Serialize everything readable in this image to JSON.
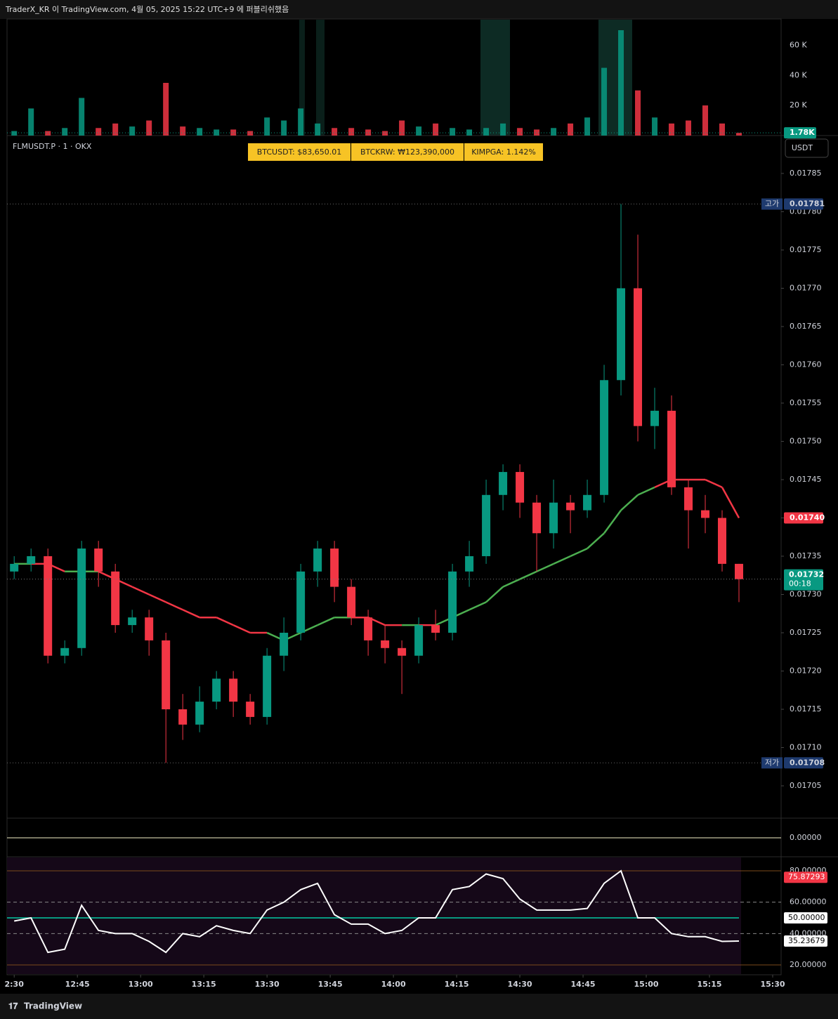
{
  "header": {
    "text": "TraderX_KR 이 TradingView.com, 4월 05, 2025 15:22 UTC+9 에 퍼블리쉬했음"
  },
  "chart_data": {
    "type": "candlestick",
    "symbol": "FLMUSDT.P · 1 · OKX",
    "badges": [
      "BTCUSDT: $83,650.01",
      "BTCKRW: ₩123,390,000",
      "KIMPGA: 1.142%"
    ],
    "currency_button": "USDT",
    "up_color": "#089981",
    "down_color": "#f23645",
    "x": [
      750,
      754,
      758,
      762,
      766,
      770,
      774,
      778,
      782,
      786,
      790,
      794,
      798,
      802,
      806,
      810,
      814,
      818,
      822,
      826,
      830,
      834,
      838,
      842,
      846,
      850,
      854,
      858,
      862,
      866,
      870,
      874,
      878,
      882,
      886,
      890,
      894,
      898,
      902,
      906,
      910,
      914,
      918,
      922
    ],
    "open": [
      0.01733,
      0.01734,
      0.01735,
      0.01722,
      0.01723,
      0.01736,
      0.01733,
      0.01726,
      0.01727,
      0.01724,
      0.01715,
      0.01713,
      0.01716,
      0.01719,
      0.01716,
      0.01714,
      0.01722,
      0.01725,
      0.01733,
      0.01736,
      0.01731,
      0.01727,
      0.01724,
      0.01723,
      0.01722,
      0.01726,
      0.01725,
      0.01733,
      0.01735,
      0.01743,
      0.01746,
      0.01742,
      0.01738,
      0.01742,
      0.01741,
      0.01743,
      0.01758,
      0.0177,
      0.01752,
      0.01754,
      0.01744,
      0.01741,
      0.0174,
      0.01734
    ],
    "high": [
      0.01735,
      0.01736,
      0.01736,
      0.01724,
      0.01737,
      0.01737,
      0.01734,
      0.01728,
      0.01728,
      0.01725,
      0.01717,
      0.01718,
      0.0172,
      0.0172,
      0.01717,
      0.01723,
      0.01727,
      0.01734,
      0.01737,
      0.01737,
      0.01732,
      0.01728,
      0.01726,
      0.01724,
      0.01727,
      0.01728,
      0.01734,
      0.01737,
      0.01745,
      0.01747,
      0.01747,
      0.01743,
      0.01745,
      0.01743,
      0.01745,
      0.0176,
      0.01781,
      0.01777,
      0.01757,
      0.01756,
      0.01745,
      0.01743,
      0.01741,
      0.01734
    ],
    "low": [
      0.01732,
      0.01733,
      0.01721,
      0.01721,
      0.01722,
      0.01731,
      0.01725,
      0.01725,
      0.01722,
      0.01708,
      0.01711,
      0.01712,
      0.01715,
      0.01714,
      0.01713,
      0.01713,
      0.0172,
      0.01724,
      0.01731,
      0.01729,
      0.01726,
      0.01722,
      0.01721,
      0.01717,
      0.01721,
      0.01724,
      0.01724,
      0.01731,
      0.01734,
      0.01741,
      0.0174,
      0.01733,
      0.01736,
      0.01738,
      0.0174,
      0.01742,
      0.01756,
      0.0175,
      0.01749,
      0.01743,
      0.01736,
      0.01738,
      0.01733,
      0.01729
    ],
    "close": [
      0.01734,
      0.01735,
      0.01722,
      0.01723,
      0.01736,
      0.01733,
      0.01726,
      0.01727,
      0.01724,
      0.01715,
      0.01713,
      0.01716,
      0.01719,
      0.01716,
      0.01714,
      0.01722,
      0.01725,
      0.01733,
      0.01736,
      0.01731,
      0.01727,
      0.01724,
      0.01723,
      0.01722,
      0.01726,
      0.01725,
      0.01733,
      0.01735,
      0.01743,
      0.01746,
      0.01742,
      0.01738,
      0.01742,
      0.01741,
      0.01743,
      0.01758,
      0.0177,
      0.01752,
      0.01754,
      0.01744,
      0.01741,
      0.0174,
      0.01734,
      0.01732
    ],
    "last_label": "0.01732",
    "countdown": "00:18",
    "ma": {
      "color_above": "#f23645",
      "color_below": "#4caf50",
      "values": [
        0.01734,
        0.01734,
        0.01734,
        0.01733,
        0.01733,
        0.01733,
        0.01732,
        0.01731,
        0.0173,
        0.01729,
        0.01728,
        0.01727,
        0.01727,
        0.01726,
        0.01725,
        0.01725,
        0.01724,
        0.01725,
        0.01726,
        0.01727,
        0.01727,
        0.01727,
        0.01726,
        0.01726,
        0.01726,
        0.01726,
        0.01727,
        0.01728,
        0.01729,
        0.01731,
        0.01732,
        0.01733,
        0.01734,
        0.01735,
        0.01736,
        0.01738,
        0.01741,
        0.01743,
        0.01744,
        0.01745,
        0.01745,
        0.01745,
        0.01744,
        0.0174
      ],
      "last_label": "0.01740"
    },
    "high_marker": {
      "label": "고가",
      "value": 0.01781,
      "value_label": "0.01781"
    },
    "low_marker": {
      "label": "저가",
      "value": 0.01708,
      "value_label": "0.01708"
    },
    "xlim": [
      748.3,
      932
    ],
    "xticks": [
      {
        "value": 750,
        "label": "2:30"
      },
      {
        "value": 765,
        "label": "12:45"
      },
      {
        "value": 780,
        "label": "13:00"
      },
      {
        "value": 795,
        "label": "13:15"
      },
      {
        "value": 810,
        "label": "13:30"
      },
      {
        "value": 825,
        "label": "13:45"
      },
      {
        "value": 840,
        "label": "14:00"
      },
      {
        "value": 855,
        "label": "14:15"
      },
      {
        "value": 870,
        "label": "14:30"
      },
      {
        "value": 885,
        "label": "14:45"
      },
      {
        "value": 900,
        "label": "15:00"
      },
      {
        "value": 915,
        "label": "15:15"
      },
      {
        "value": 930,
        "label": "15:30"
      }
    ],
    "ylim": [
      0.0170078,
      0.0178995
    ],
    "yticks": [
      {
        "value": 0.01705,
        "label": "0.01705"
      },
      {
        "value": 0.0171,
        "label": "0.01710"
      },
      {
        "value": 0.01715,
        "label": "0.01715"
      },
      {
        "value": 0.0172,
        "label": "0.01720"
      },
      {
        "value": 0.01725,
        "label": "0.01725"
      },
      {
        "value": 0.0173,
        "label": "0.01730"
      },
      {
        "value": 0.01735,
        "label": "0.01735"
      },
      {
        "value": 0.0174,
        "label": "0.01740"
      },
      {
        "value": 0.01745,
        "label": "0.01745"
      },
      {
        "value": 0.0175,
        "label": "0.01750"
      },
      {
        "value": 0.01755,
        "label": "0.01755"
      },
      {
        "value": 0.0176,
        "label": "0.01760"
      },
      {
        "value": 0.01765,
        "label": "0.01765"
      },
      {
        "value": 0.0177,
        "label": "0.01770"
      },
      {
        "value": 0.01775,
        "label": "0.01775"
      },
      {
        "value": 0.0178,
        "label": "0.01780"
      },
      {
        "value": 0.01785,
        "label": "0.01785"
      }
    ],
    "volume": {
      "values": [
        3,
        18,
        3,
        5,
        25,
        5,
        8,
        6,
        10,
        35,
        6,
        5,
        4,
        4,
        3,
        12,
        10,
        18,
        8,
        5,
        5,
        4,
        3,
        10,
        6,
        8,
        5,
        4,
        5,
        8,
        5,
        4,
        5,
        8,
        12,
        45,
        70,
        30,
        12,
        8,
        10,
        20,
        8,
        1.78
      ],
      "last_label": "1.78K",
      "ylim": [
        0,
        77
      ],
      "yticks": [
        {
          "value": 20,
          "label": "20 K"
        },
        {
          "value": 40,
          "label": "40 K"
        },
        {
          "value": 60,
          "label": "60 K"
        }
      ]
    },
    "indicator": {
      "yticks": [
        {
          "value": 0,
          "label": "0.00000"
        }
      ]
    },
    "rsi": {
      "color": "#ffffff",
      "values": [
        48,
        50,
        28,
        30,
        58,
        42,
        40,
        40,
        35,
        28,
        40,
        38,
        45,
        42,
        40,
        55,
        60,
        68,
        72,
        52,
        46,
        46,
        40,
        42,
        50,
        50,
        68,
        70,
        78,
        75,
        62,
        55,
        55,
        55,
        56,
        72,
        80,
        50,
        50,
        40,
        38,
        38,
        35,
        35.23679
      ],
      "last_label": "35.23679",
      "ylim": [
        13.73,
        88.96
      ],
      "yticks": [
        {
          "value": 80,
          "label": "80.00000"
        },
        {
          "value": 60,
          "label": "60.00000"
        },
        {
          "value": 40,
          "label": "40.00000"
        },
        {
          "value": 20,
          "label": "20.00000"
        }
      ],
      "upper": {
        "value": 75.87293,
        "label": "75.87293"
      },
      "midline": {
        "value": 50,
        "label": "50.00000"
      }
    }
  },
  "footer": {
    "text": "TradingView"
  }
}
